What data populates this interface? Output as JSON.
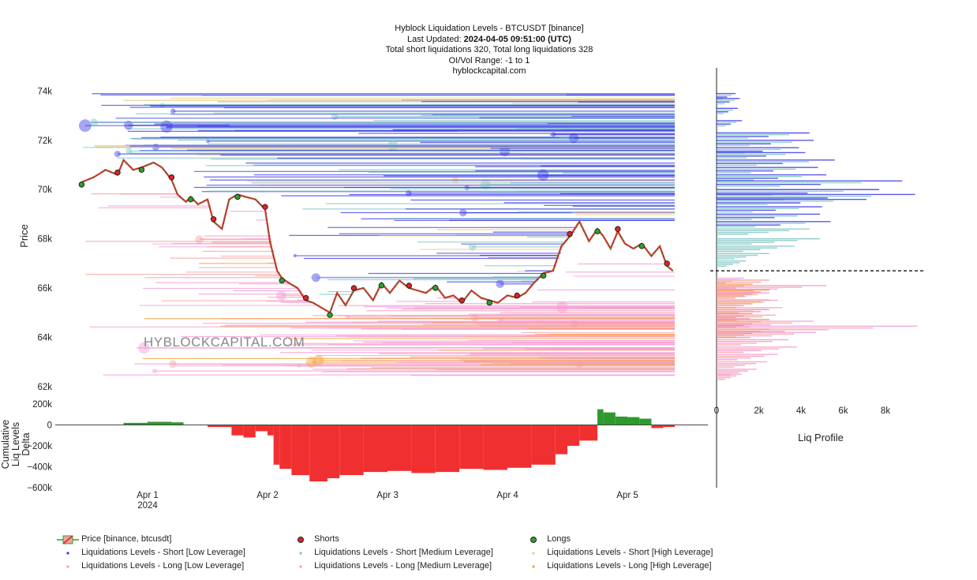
{
  "header": {
    "line1": "Hyblock Liquidation Levels - BTCUSDT [binance]",
    "line2_prefix": "Last Updated: ",
    "line2_value": "2024-04-05 09:51:00 (UTC)",
    "line3": "Total short liquidations 320, Total long liquidations 328",
    "line4": "OI/Vol Range: -1 to 1",
    "line5": "hyblockcapital.com"
  },
  "watermark": "HYBLOCKCAPITAL.COM",
  "colors": {
    "short_low": "#3a3ae8",
    "short_medium": "#7fc6c2",
    "short_high": "#f2c77a",
    "long_low": "#f59ad6",
    "long_medium": "#f5a0a0",
    "long_high": "#f7a03a",
    "price_up": "#2ca02c",
    "price_down": "#d62728",
    "delta_pos": "#2e9a2e",
    "delta_neg": "#f03030"
  },
  "chart_data": [
    {
      "type": "line",
      "name": "main-price",
      "ylabel": "Price",
      "ylim": [
        61800,
        74400
      ],
      "yticks": [
        62000,
        64000,
        66000,
        68000,
        70000,
        72000,
        74000
      ],
      "ytick_labels": [
        "62k",
        "64k",
        "66k",
        "68k",
        "70k",
        "72k",
        "74k"
      ],
      "x_ticks": [
        "Apr 1\n2024",
        "Apr 2",
        "Apr 3",
        "Apr 4",
        "Apr 5"
      ],
      "x_days": [
        0,
        1,
        2,
        3,
        4
      ],
      "xlim_days": [
        -0.55,
        4.4
      ],
      "series": [
        {
          "name": "Price [binance, btcusdt]",
          "x": [
            -0.55,
            -0.45,
            -0.35,
            -0.25,
            -0.2,
            -0.12,
            -0.05,
            0.05,
            0.12,
            0.2,
            0.25,
            0.32,
            0.36,
            0.42,
            0.5,
            0.55,
            0.62,
            0.68,
            0.75,
            0.82,
            0.9,
            0.98,
            1.02,
            1.08,
            1.12,
            1.18,
            1.25,
            1.32,
            1.38,
            1.45,
            1.52,
            1.58,
            1.65,
            1.72,
            1.8,
            1.88,
            1.95,
            2.02,
            2.1,
            2.18,
            2.25,
            2.32,
            2.4,
            2.48,
            2.55,
            2.62,
            2.7,
            2.78,
            2.85,
            2.92,
            3.0,
            3.08,
            3.15,
            3.22,
            3.3,
            3.38,
            3.45,
            3.52,
            3.6,
            3.68,
            3.75,
            3.8,
            3.86,
            3.92,
            3.98,
            4.05,
            4.12,
            4.2,
            4.27,
            4.33,
            4.38
          ],
          "y": [
            70300,
            70500,
            70800,
            70600,
            71200,
            70800,
            70900,
            71100,
            70900,
            70400,
            69800,
            69500,
            69700,
            69400,
            69600,
            68700,
            68400,
            69600,
            69800,
            69700,
            69600,
            69200,
            67900,
            66700,
            66400,
            66200,
            66000,
            65500,
            65400,
            65200,
            65000,
            65800,
            65300,
            65900,
            66000,
            65500,
            66200,
            65800,
            66300,
            66000,
            65900,
            65800,
            66100,
            65600,
            65700,
            65400,
            65900,
            65600,
            65500,
            65400,
            65700,
            65600,
            65800,
            66200,
            66600,
            66700,
            67700,
            68100,
            68700,
            67900,
            68400,
            68100,
            67600,
            68300,
            67800,
            67600,
            67800,
            67300,
            67700,
            66900,
            66700
          ]
        }
      ],
      "legend": [
        "Price [binance, btcusdt]",
        "Shorts",
        "Longs",
        "Liquidations Levels - Short [Low Leverage]",
        "Liquidations Levels - Short [Medium Leverage]",
        "Liquidations Levels - Short [High Leverage]",
        "Liquidations Levels - Long [Low Leverage]",
        "Liquidations Levels - Long [Medium Leverage]",
        "Liquidations Levels - Long [High Leverage]"
      ]
    },
    {
      "type": "area",
      "name": "cumulative-delta",
      "ylabel": "Cumulative Liq Levels Delta",
      "ylim": [
        -600000,
        200000
      ],
      "yticks": [
        200000,
        0,
        -200000,
        -400000,
        -600000
      ],
      "ytick_labels": [
        "200k",
        "0",
        "−200k",
        "−400k",
        "−600k"
      ],
      "series": [
        {
          "name": "Cumulative Liq Levels Delta",
          "x": [
            -0.55,
            -0.4,
            -0.3,
            -0.2,
            0.0,
            0.2,
            0.3,
            0.5,
            0.7,
            0.8,
            0.9,
            1.0,
            1.05,
            1.1,
            1.2,
            1.35,
            1.5,
            1.6,
            1.8,
            2.0,
            2.2,
            2.4,
            2.6,
            2.8,
            3.0,
            3.2,
            3.4,
            3.5,
            3.6,
            3.75,
            3.8,
            3.9,
            4.0,
            4.1,
            4.2,
            4.3,
            4.4
          ],
          "y": [
            0,
            0,
            0,
            20000,
            30000,
            25000,
            0,
            -20000,
            -100000,
            -120000,
            -60000,
            -100000,
            -380000,
            -420000,
            -480000,
            -540000,
            -510000,
            -480000,
            -450000,
            -440000,
            -460000,
            -450000,
            -420000,
            -430000,
            -410000,
            -380000,
            -280000,
            -200000,
            -150000,
            150000,
            120000,
            80000,
            75000,
            60000,
            -30000,
            -20000,
            -30000
          ]
        }
      ]
    },
    {
      "type": "bar",
      "name": "liq-profile",
      "xlabel": "Liq Profile",
      "xlim": [
        0,
        10000
      ],
      "xticks": [
        0,
        2000,
        4000,
        6000,
        8000
      ],
      "xtick_labels": [
        "0",
        "2k",
        "4k",
        "6k",
        "8k"
      ],
      "current_price": 66700,
      "bins": [
        {
          "price": 73900,
          "value": 900,
          "side": "short"
        },
        {
          "price": 73700,
          "value": 1100,
          "side": "short"
        },
        {
          "price": 73300,
          "value": 1000,
          "side": "short"
        },
        {
          "price": 72800,
          "value": 1200,
          "side": "short"
        },
        {
          "price": 72300,
          "value": 4400,
          "side": "short"
        },
        {
          "price": 72000,
          "value": 4600,
          "side": "short"
        },
        {
          "price": 71700,
          "value": 3900,
          "side": "short"
        },
        {
          "price": 71500,
          "value": 4200,
          "side": "short"
        },
        {
          "price": 71200,
          "value": 5600,
          "side": "short"
        },
        {
          "price": 70900,
          "value": 4800,
          "side": "short"
        },
        {
          "price": 70600,
          "value": 5200,
          "side": "short"
        },
        {
          "price": 70350,
          "value": 8800,
          "side": "short"
        },
        {
          "price": 70000,
          "value": 7700,
          "side": "short"
        },
        {
          "price": 69800,
          "value": 9400,
          "side": "short"
        },
        {
          "price": 69600,
          "value": 7100,
          "side": "short"
        },
        {
          "price": 69300,
          "value": 5000,
          "side": "short"
        },
        {
          "price": 69000,
          "value": 4900,
          "side": "short"
        },
        {
          "price": 68700,
          "value": 5400,
          "side": "short"
        },
        {
          "price": 68400,
          "value": 4400,
          "side": "medium"
        },
        {
          "price": 68000,
          "value": 4900,
          "side": "medium"
        },
        {
          "price": 67700,
          "value": 3700,
          "side": "medium"
        },
        {
          "price": 67400,
          "value": 2500,
          "side": "medium"
        },
        {
          "price": 67100,
          "value": 1400,
          "side": "medium"
        },
        {
          "price": 66400,
          "value": 1300,
          "side": "long"
        },
        {
          "price": 66100,
          "value": 5200,
          "side": "long"
        },
        {
          "price": 65800,
          "value": 2500,
          "side": "long"
        },
        {
          "price": 65500,
          "value": 2900,
          "side": "long"
        },
        {
          "price": 65200,
          "value": 3100,
          "side": "long"
        },
        {
          "price": 64900,
          "value": 2800,
          "side": "long"
        },
        {
          "price": 64650,
          "value": 4600,
          "side": "long"
        },
        {
          "price": 64450,
          "value": 9500,
          "side": "long"
        },
        {
          "price": 64200,
          "value": 4700,
          "side": "long"
        },
        {
          "price": 63900,
          "value": 3400,
          "side": "long"
        },
        {
          "price": 63600,
          "value": 3800,
          "side": "long"
        },
        {
          "price": 63300,
          "value": 2900,
          "side": "long"
        },
        {
          "price": 63000,
          "value": 2400,
          "side": "long"
        },
        {
          "price": 62700,
          "value": 1900,
          "side": "long"
        },
        {
          "price": 62500,
          "value": 1200,
          "side": "long"
        }
      ]
    }
  ]
}
